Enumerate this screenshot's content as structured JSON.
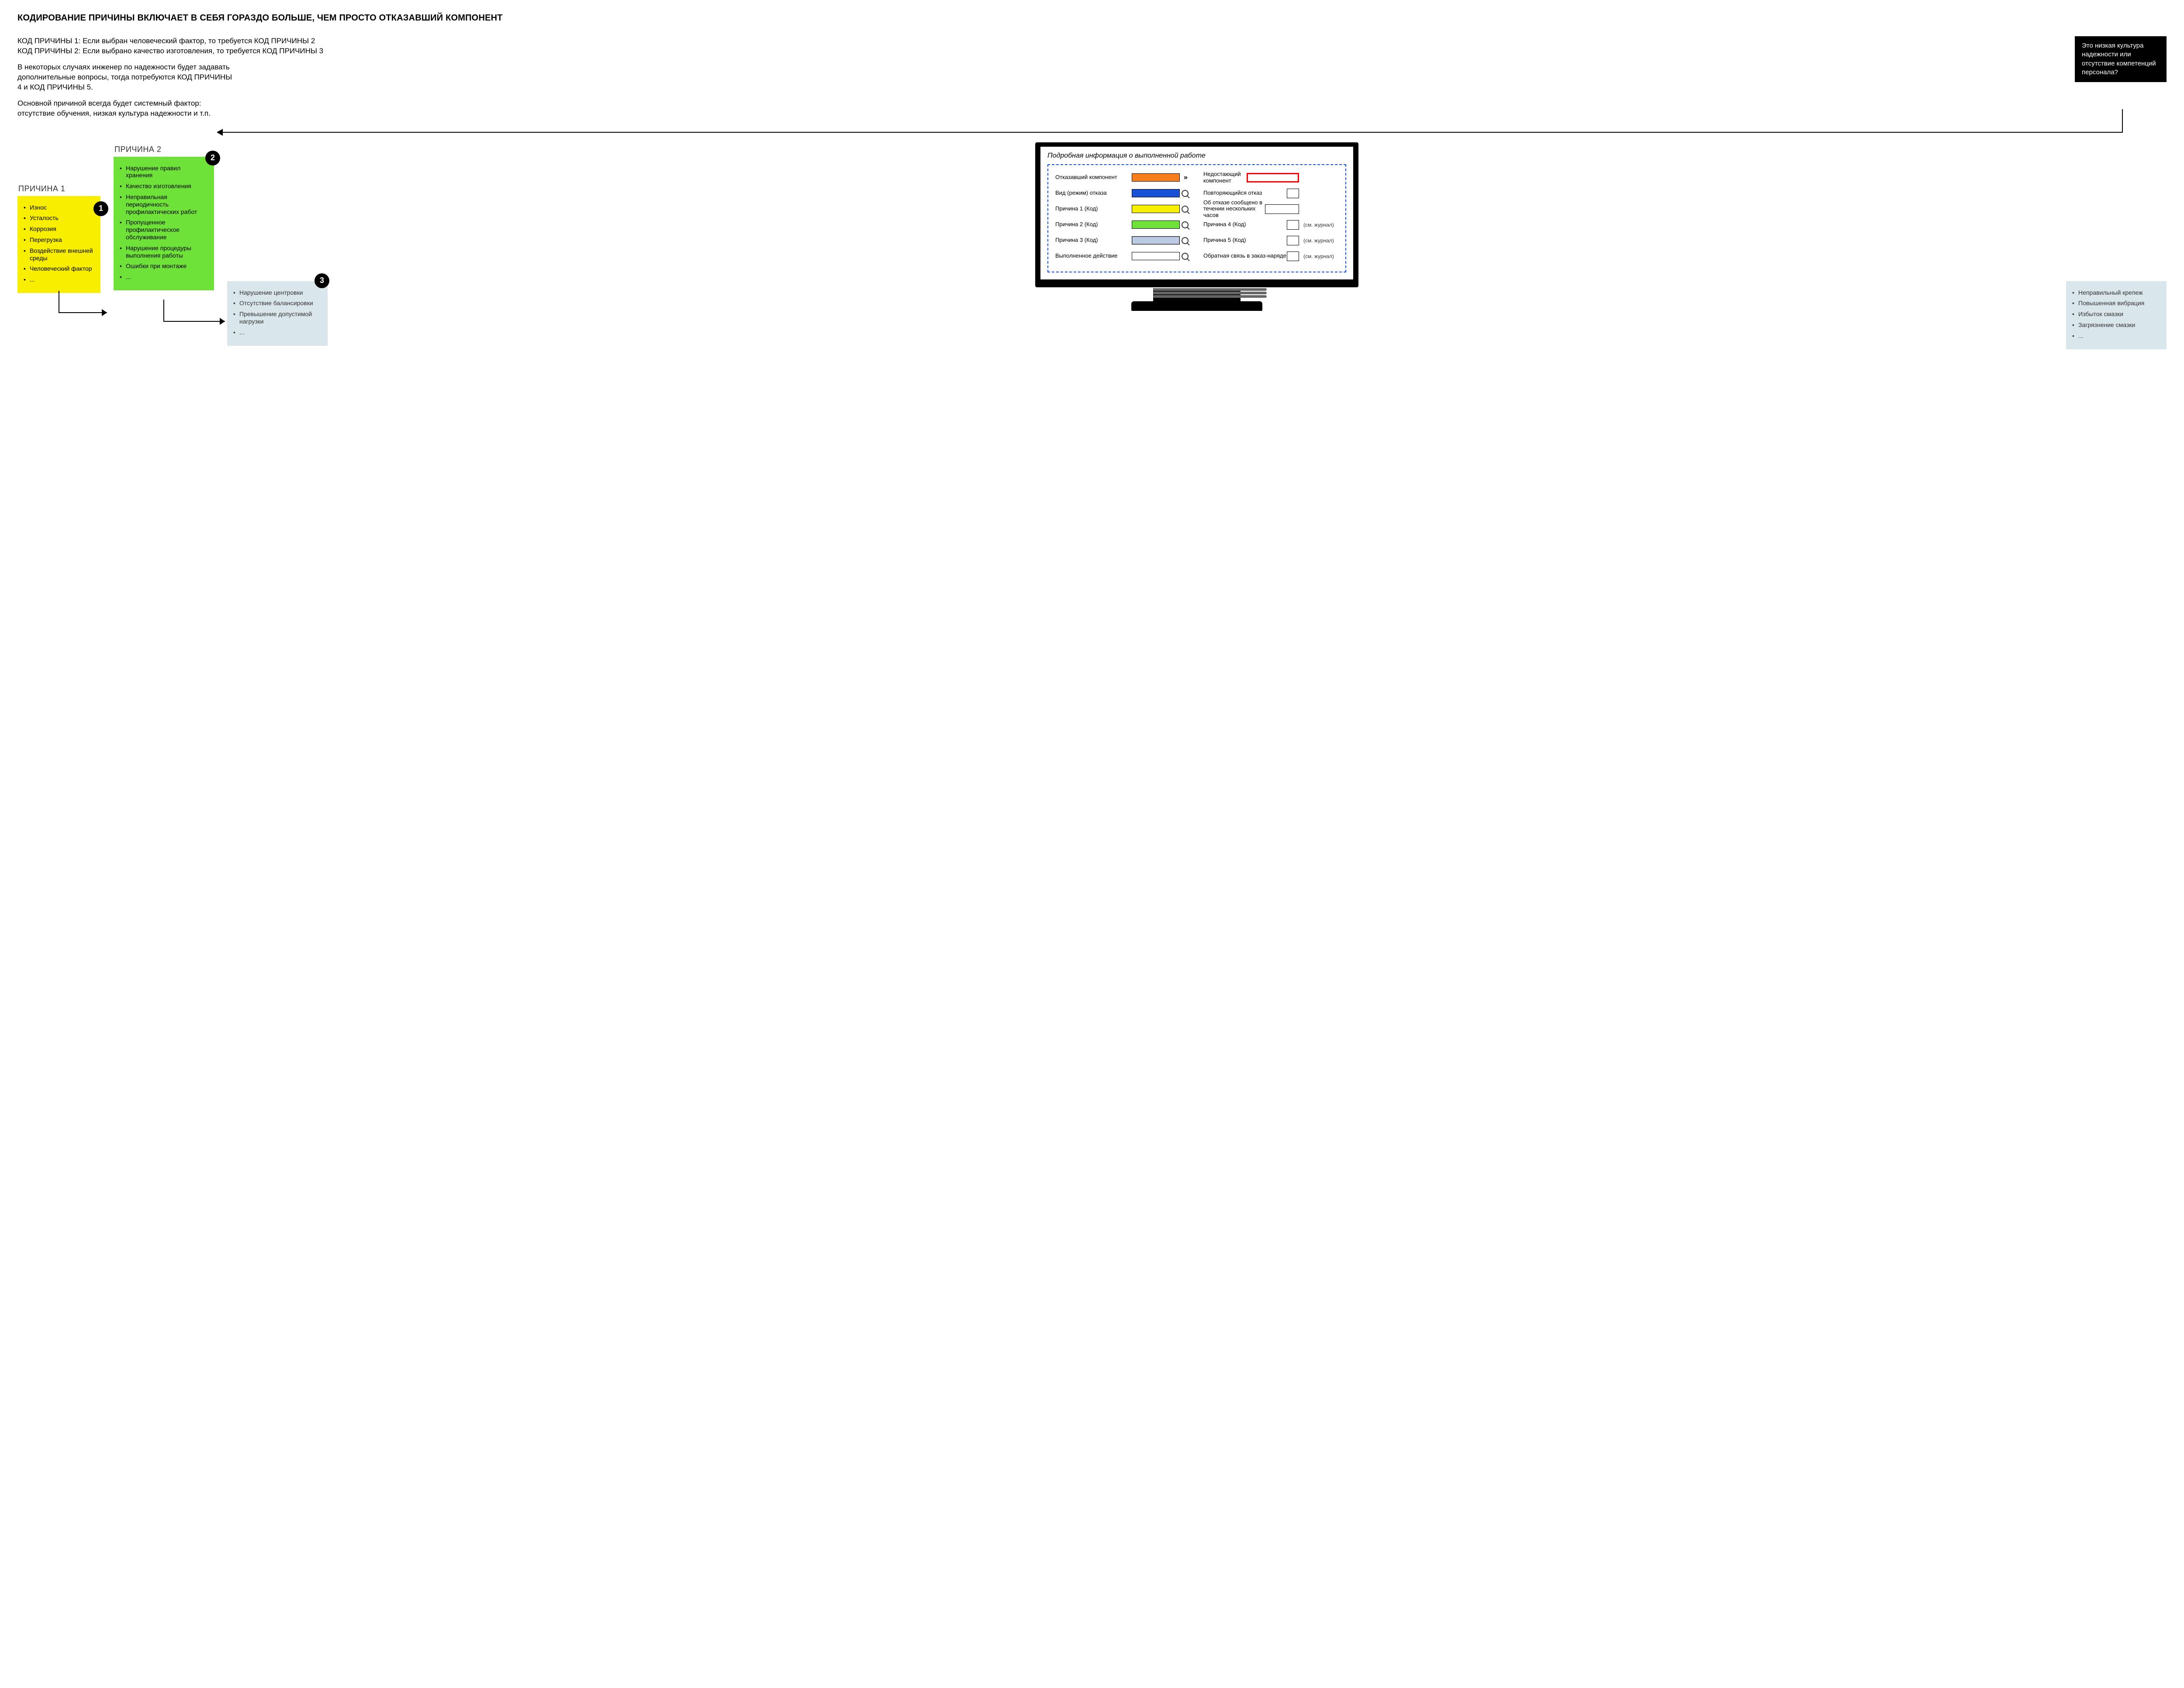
{
  "title": "КОДИРОВАНИЕ ПРИЧИНЫ ВКЛЮЧАЕТ В СЕБЯ ГОРАЗДО БОЛЬШЕ, ЧЕМ ПРОСТО ОТКАЗАВШИЙ КОМПОНЕНТ",
  "intro": {
    "line1": "КОД ПРИЧИНЫ 1: Если выбран человеческий фактор, то требуется КОД ПРИЧИНЫ 2",
    "line2": "КОД ПРИЧИНЫ 2: Если выбрано качество изготовления, то требуется КОД ПРИЧИНЫ 3",
    "para2": "В некоторых случаях инженер по надежности будет задавать дополнительные вопросы, тогда потребуются КОД ПРИЧИНЫ 4 и КОД ПРИЧИНЫ 5.",
    "para3": "Основной причиной всегда будет системный фактор: отсутствие обучения, низкая культура надежности и т.п."
  },
  "note_box": "Это низкая культура надежности или отсутствие компетенций персонала?",
  "cause1": {
    "head": "ПРИЧИНА 1",
    "badge": "1",
    "bg": "#f7ee00",
    "items": [
      "Износ",
      "Усталость",
      "Коррозия",
      "Перегрузка",
      "Воздействие внешней среды",
      "Человеческий фактор",
      "..."
    ]
  },
  "cause2": {
    "head": "ПРИЧИНА 2",
    "badge": "2",
    "bg": "#6fe23a",
    "items": [
      "Нарушение правил хранения",
      "Качество изготовления",
      "Неправильная периодичность профилактических работ",
      "Пропущенное профилактическое обслуживание",
      "Нарушение процедуры выполнения работы",
      "Ошибки при монтаже",
      "..."
    ]
  },
  "cause3a": {
    "badge": "3",
    "bg": "#d9e6ec",
    "items": [
      "Нарушение центровки",
      "Отсутствие балансировки",
      "Превышение допустимой нагрузки",
      "..."
    ]
  },
  "cause3b": {
    "bg": "#d9e6ec",
    "items": [
      "Неправильный крепеж",
      "Повышенная вибрация",
      "Избыток смазки",
      "Загрязнение смазки",
      "..."
    ]
  },
  "screen": {
    "title": "Подробная информация о выполненной работе",
    "left": [
      {
        "label": "Отказавший компонент",
        "color": "#f77f1b",
        "icon": "chev"
      },
      {
        "label": "Вид (режим) отказа",
        "color": "#1850d6",
        "icon": "mag"
      },
      {
        "label": "Причина 1 (Код)",
        "color": "#f7ee00",
        "icon": "mag"
      },
      {
        "label": "Причина 2 (Код)",
        "color": "#6fe23a",
        "icon": "mag"
      },
      {
        "label": "Причина 3 (Код)",
        "color": "#bccbe3",
        "icon": "mag",
        "selected": true
      },
      {
        "label": "Выполненное действие",
        "color": "#ffffff",
        "icon": "mag"
      }
    ],
    "right": [
      {
        "label": "Недостающий компонент",
        "type": "red"
      },
      {
        "label": "Повторяющийся отказ",
        "type": "small"
      },
      {
        "label": "Об отказе сообщено в течении нескольких часов",
        "type": "wide"
      },
      {
        "label": "Причина 4 (Код)",
        "type": "small",
        "trail": "(см. журнал)"
      },
      {
        "label": "Причина 5 (Код)",
        "type": "small",
        "trail": "(см. журнал)"
      },
      {
        "label": "Обратная связь в заказ-наряде",
        "type": "small",
        "trail": "(см. журнал)"
      }
    ]
  },
  "colors": {
    "dash_border": "#1850d6",
    "red": "#ff0000"
  }
}
